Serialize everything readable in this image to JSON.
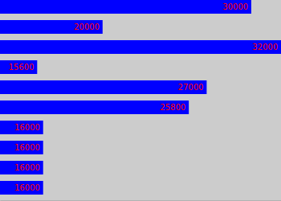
{
  "chart_data": {
    "type": "bar",
    "orientation": "horizontal",
    "categories": [
      null,
      null,
      null,
      null,
      null,
      null,
      null,
      null,
      null,
      null
    ],
    "values": [
      30000,
      20000,
      32000,
      15600,
      27000,
      25800,
      16000,
      16000,
      16000,
      16000
    ],
    "color": "#0000ff",
    "xlim": [
      13100,
      32000
    ],
    "grid": false,
    "data_labels": true,
    "tick_labels": false
  }
}
